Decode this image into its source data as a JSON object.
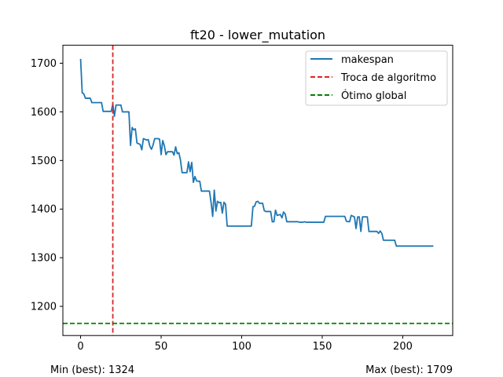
{
  "chart_data": {
    "type": "line",
    "title": "ft20 - lower_mutation",
    "xlabel": "",
    "ylabel": "",
    "xlim": [
      -11,
      231
    ],
    "ylim": [
      1140,
      1737
    ],
    "xticks": [
      0,
      50,
      100,
      150,
      200
    ],
    "yticks": [
      1200,
      1300,
      1400,
      1500,
      1600,
      1700
    ],
    "grid": false,
    "legend_position": "top-right",
    "series": [
      {
        "name": "makespan",
        "color": "#1f77b4",
        "style": "solid",
        "points": [
          [
            0,
            1709
          ],
          [
            1,
            1639
          ],
          [
            2,
            1637
          ],
          [
            3,
            1628
          ],
          [
            6,
            1628
          ],
          [
            7,
            1619
          ],
          [
            13,
            1619
          ],
          [
            14,
            1601
          ],
          [
            19,
            1601
          ],
          [
            20,
            1616
          ],
          [
            21,
            1591
          ],
          [
            22,
            1614
          ],
          [
            25,
            1614
          ],
          [
            26,
            1600
          ],
          [
            30,
            1600
          ],
          [
            31,
            1531
          ],
          [
            32,
            1568
          ],
          [
            33,
            1563
          ],
          [
            34,
            1565
          ],
          [
            35,
            1536
          ],
          [
            37,
            1533
          ],
          [
            38,
            1522
          ],
          [
            39,
            1545
          ],
          [
            41,
            1542
          ],
          [
            42,
            1543
          ],
          [
            43,
            1529
          ],
          [
            44,
            1523
          ],
          [
            45,
            1532
          ],
          [
            46,
            1545
          ],
          [
            48,
            1545
          ],
          [
            49,
            1544
          ],
          [
            50,
            1512
          ],
          [
            51,
            1541
          ],
          [
            52,
            1530
          ],
          [
            53,
            1512
          ],
          [
            54,
            1518
          ],
          [
            57,
            1518
          ],
          [
            58,
            1511
          ],
          [
            59,
            1528
          ],
          [
            60,
            1514
          ],
          [
            61,
            1516
          ],
          [
            62,
            1501
          ],
          [
            63,
            1475
          ],
          [
            66,
            1475
          ],
          [
            67,
            1497
          ],
          [
            68,
            1477
          ],
          [
            69,
            1496
          ],
          [
            70,
            1455
          ],
          [
            71,
            1467
          ],
          [
            72,
            1458
          ],
          [
            74,
            1457
          ],
          [
            75,
            1437
          ],
          [
            80,
            1437
          ],
          [
            81,
            1414
          ],
          [
            82,
            1385
          ],
          [
            83,
            1439
          ],
          [
            84,
            1396
          ],
          [
            85,
            1416
          ],
          [
            86,
            1413
          ],
          [
            87,
            1414
          ],
          [
            88,
            1392
          ],
          [
            89,
            1414
          ],
          [
            90,
            1410
          ],
          [
            91,
            1365
          ],
          [
            106,
            1365
          ],
          [
            107,
            1405
          ],
          [
            108,
            1406
          ],
          [
            109,
            1415
          ],
          [
            110,
            1416
          ],
          [
            111,
            1412
          ],
          [
            113,
            1412
          ],
          [
            114,
            1397
          ],
          [
            115,
            1395
          ],
          [
            118,
            1395
          ],
          [
            119,
            1374
          ],
          [
            120,
            1374
          ],
          [
            121,
            1398
          ],
          [
            122,
            1387
          ],
          [
            124,
            1389
          ],
          [
            125,
            1382
          ],
          [
            126,
            1394
          ],
          [
            127,
            1390
          ],
          [
            128,
            1374
          ],
          [
            135,
            1374
          ],
          [
            136,
            1373
          ],
          [
            138,
            1373
          ],
          [
            139,
            1374
          ],
          [
            140,
            1373
          ],
          [
            151,
            1373
          ],
          [
            152,
            1385
          ],
          [
            164,
            1385
          ],
          [
            165,
            1375
          ],
          [
            167,
            1374
          ],
          [
            168,
            1387
          ],
          [
            170,
            1384
          ],
          [
            171,
            1360
          ],
          [
            172,
            1384
          ],
          [
            173,
            1384
          ],
          [
            174,
            1354
          ],
          [
            175,
            1384
          ],
          [
            178,
            1384
          ],
          [
            179,
            1354
          ],
          [
            184,
            1354
          ],
          [
            185,
            1350
          ],
          [
            186,
            1355
          ],
          [
            187,
            1350
          ],
          [
            188,
            1336
          ],
          [
            195,
            1336
          ],
          [
            196,
            1324
          ],
          [
            219,
            1324
          ]
        ]
      },
      {
        "name": "Troca de algoritmo",
        "color": "#d62728",
        "style": "dashed-vertical",
        "x": 20
      },
      {
        "name": "Ótimo global",
        "color": "#008000",
        "style": "dashed-horizontal",
        "y": 1165
      }
    ]
  },
  "footer": {
    "min_label": "Min (best): 1324",
    "max_label": "Max (best): 1709"
  }
}
